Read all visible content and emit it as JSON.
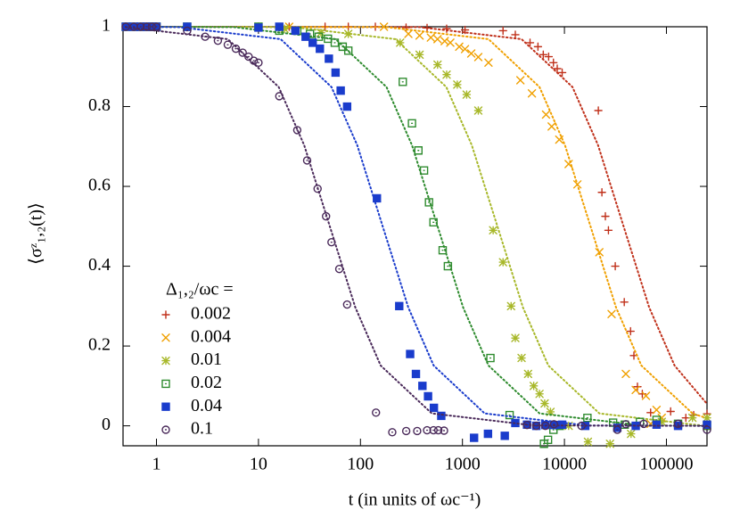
{
  "chart_data": {
    "type": "scatter",
    "x_label": "t (in units of ωc⁻¹)",
    "y_label": "⟨σᶻ₁,₂(t)⟩",
    "legend_title": "Δ₁,₂/ωc =",
    "log_x": true,
    "xlim": [
      0.47,
      250000
    ],
    "xticks": [
      1,
      10,
      100,
      1000,
      10000,
      100000
    ],
    "ylim": [
      -0.05,
      1
    ],
    "yticks": [
      0,
      0.2,
      0.4,
      0.6,
      0.8,
      1
    ],
    "series": [
      {
        "name": "0.002",
        "color": "#c0311b",
        "marker": "plus",
        "x": [
          0.5,
          0.6,
          0.7,
          0.8,
          0.9,
          1,
          2,
          10,
          20,
          45,
          76,
          140,
          280,
          450,
          700,
          1060,
          2500,
          3300,
          4600,
          5500,
          6200,
          7000,
          7800,
          8500,
          9500,
          21500,
          23300,
          25200,
          27000,
          31500,
          38600,
          44500,
          48000,
          52000,
          58000,
          70000,
          110000,
          155000,
          185000,
          250000
        ],
        "values": [
          1,
          1,
          1,
          1,
          1,
          1,
          1,
          1,
          1,
          1,
          1,
          1,
          0.998,
          0.997,
          0.995,
          0.992,
          0.99,
          0.98,
          0.96,
          0.95,
          0.93,
          0.925,
          0.91,
          0.895,
          0.885,
          0.79,
          0.585,
          0.525,
          0.49,
          0.4,
          0.31,
          0.237,
          0.176,
          0.098,
          0.08,
          0.033,
          0.036,
          0.02,
          0.027,
          0.03
        ],
        "fit": {
          "x": [
            0.5,
            380,
            3800,
            12000,
            21360,
            38000,
            67640,
            120080,
            250000
          ],
          "values": [
            1,
            0.999,
            0.969,
            0.849,
            0.703,
            0.5,
            0.297,
            0.151,
            0.055
          ]
        }
      },
      {
        "name": "0.004",
        "color": "#f0a000",
        "marker": "cross",
        "x": [
          0.5,
          0.6,
          0.7,
          0.8,
          0.9,
          1,
          2,
          10,
          20,
          170,
          295,
          380,
          490,
          570,
          670,
          760,
          930,
          1060,
          1220,
          1430,
          1800,
          3700,
          4800,
          6600,
          7500,
          8900,
          11000,
          13400,
          22000,
          29000,
          40000,
          50000,
          63000,
          70000,
          80000,
          90000,
          130000,
          250000
        ],
        "values": [
          1,
          1,
          1,
          1,
          1,
          1,
          1,
          1,
          1,
          1,
          0.982,
          0.978,
          0.973,
          0.969,
          0.964,
          0.96,
          0.95,
          0.944,
          0.933,
          0.924,
          0.91,
          0.866,
          0.833,
          0.78,
          0.75,
          0.717,
          0.656,
          0.605,
          0.435,
          0.28,
          0.13,
          0.09,
          0.075,
          0.005,
          0.04,
          0.02,
          0.003,
          0
        ],
        "fit": {
          "x": [
            0.5,
            180,
            1800,
            5690,
            10120,
            18000,
            32040,
            56880,
            180000,
            250000
          ],
          "values": [
            1,
            0.999,
            0.969,
            0.849,
            0.703,
            0.5,
            0.297,
            0.151,
            0.031,
            0.019
          ]
        }
      },
      {
        "name": "0.01",
        "color": "#a8b82a",
        "marker": "star",
        "x": [
          0.5,
          0.6,
          0.7,
          0.8,
          0.9,
          1,
          2,
          10,
          18,
          41,
          76,
          245,
          380,
          570,
          700,
          890,
          1100,
          1430,
          2000,
          2500,
          3000,
          3300,
          3800,
          4400,
          5000,
          5700,
          6400,
          7300,
          11000,
          17000,
          28000,
          45000,
          90000,
          180000,
          250000
        ],
        "values": [
          1,
          1,
          1,
          1,
          1,
          1,
          1,
          1,
          0.995,
          0.985,
          0.982,
          0.96,
          0.93,
          0.905,
          0.88,
          0.855,
          0.83,
          0.79,
          0.49,
          0.41,
          0.3,
          0.22,
          0.17,
          0.13,
          0.1,
          0.08,
          0.056,
          0.035,
          0,
          -0.04,
          -0.045,
          -0.02,
          0.01,
          0.02,
          0.02
        ],
        "fit": {
          "x": [
            0.5,
            22,
            220,
            695,
            1236,
            2200,
            3916,
            6952,
            22000,
            220000
          ],
          "values": [
            1,
            0.999,
            0.969,
            0.849,
            0.703,
            0.5,
            0.297,
            0.151,
            0.031,
            0.001
          ]
        }
      },
      {
        "name": "0.02",
        "color": "#2e8b2e",
        "marker": "square-dot",
        "x": [
          0.5,
          0.6,
          0.7,
          0.8,
          0.9,
          1,
          2,
          10,
          16,
          24,
          32,
          39,
          48,
          56,
          67,
          76,
          260,
          320,
          370,
          420,
          470,
          520,
          640,
          720,
          1880,
          2900,
          6300,
          6900,
          7800,
          9000,
          16800,
          30000,
          39000,
          55000,
          80000,
          130000,
          250000
        ],
        "values": [
          1,
          1,
          1,
          1,
          1,
          1,
          1,
          1,
          0.99,
          0.99,
          0.982,
          0.975,
          0.97,
          0.96,
          0.95,
          0.94,
          0.862,
          0.758,
          0.69,
          0.64,
          0.56,
          0.51,
          0.44,
          0.4,
          0.17,
          0.027,
          -0.045,
          -0.035,
          -0.01,
          0,
          0.02,
          0.008,
          0.003,
          0.01,
          0.015,
          0.005,
          0
        ],
        "fit": {
          "x": [
            0.5,
            5.7,
            57,
            180,
            320,
            570,
            1015,
            1800,
            5700,
            57000,
            250000
          ],
          "values": [
            1,
            0.999,
            0.969,
            0.849,
            0.703,
            0.5,
            0.297,
            0.151,
            0.031,
            0.001,
            0
          ]
        }
      },
      {
        "name": "0.04",
        "color": "#1a3ccc",
        "marker": "filled-square",
        "x": [
          0.5,
          0.6,
          0.7,
          0.8,
          0.9,
          1,
          2,
          10,
          16,
          23,
          29,
          34,
          40,
          49,
          57,
          64,
          74,
          145,
          240,
          307,
          350,
          405,
          460,
          525,
          620,
          1300,
          1780,
          2600,
          3300,
          4300,
          5300,
          6500,
          7900,
          9500,
          16000,
          33000,
          50000,
          80000,
          130000,
          250000
        ],
        "values": [
          1,
          1,
          1,
          1,
          1,
          1,
          1,
          0.998,
          1,
          0.99,
          0.975,
          0.96,
          0.945,
          0.92,
          0.885,
          0.84,
          0.8,
          0.57,
          0.3,
          0.18,
          0.13,
          0.1,
          0.074,
          0.045,
          0.025,
          -0.03,
          -0.02,
          -0.025,
          0.007,
          0.003,
          0,
          0.002,
          0.002,
          0.003,
          0,
          -0.005,
          0,
          0.003,
          0,
          0.003
        ],
        "fit": {
          "x": [
            0.5,
            1.65,
            16.5,
            52,
            93,
            165,
            294,
            522,
            1650,
            16500,
            250000
          ],
          "values": [
            1,
            0.999,
            0.969,
            0.849,
            0.703,
            0.5,
            0.297,
            0.151,
            0.031,
            0.001,
            0
          ]
        }
      },
      {
        "name": "0.1",
        "color": "#4a2a5a",
        "marker": "circle-dot",
        "x": [
          0.5,
          0.6,
          0.7,
          0.8,
          0.9,
          1,
          2,
          3,
          4,
          5,
          6,
          7,
          8,
          9,
          10,
          16,
          24,
          30,
          38,
          46,
          52,
          62,
          74,
          142,
          205,
          281,
          360,
          450,
          520,
          580,
          660,
          4300,
          5300,
          6500,
          7900,
          14700,
          33000,
          40000,
          60000,
          130000,
          250000
        ],
        "values": [
          1,
          1,
          1,
          1,
          1,
          1,
          0.99,
          0.975,
          0.965,
          0.955,
          0.945,
          0.935,
          0.925,
          0.915,
          0.91,
          0.826,
          0.741,
          0.665,
          0.594,
          0.525,
          0.46,
          0.393,
          0.304,
          0.033,
          -0.016,
          -0.013,
          -0.013,
          -0.011,
          -0.011,
          -0.011,
          -0.012,
          0.002,
          0,
          0,
          0.004,
          0,
          -0.01,
          0.004,
          0.005,
          0.005,
          -0.01
        ],
        "fit": {
          "x": [
            0.5,
            5,
            15.8,
            28.1,
            50,
            89,
            158,
            500,
            5000,
            250000
          ],
          "values": [
            0.999,
            0.969,
            0.849,
            0.703,
            0.5,
            0.297,
            0.151,
            0.031,
            0.001,
            0
          ]
        }
      }
    ]
  }
}
